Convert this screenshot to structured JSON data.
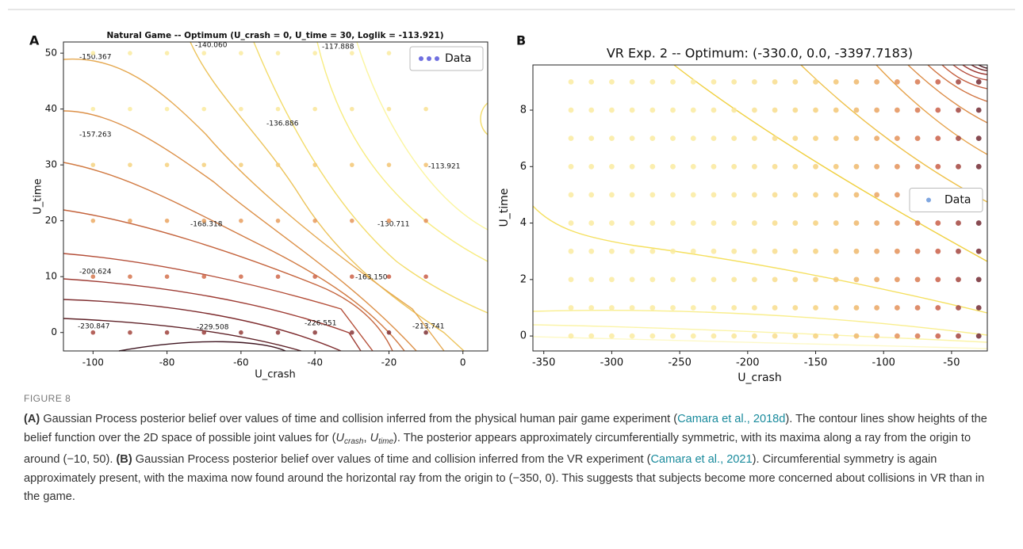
{
  "figure": {
    "label": "FIGURE 8",
    "caption": [
      {
        "text": "(A)",
        "style": "bold"
      },
      {
        "text": " Gaussian Process posterior belief over values of time and collision inferred from the physical human pair game experiment (",
        "style": "plain"
      },
      {
        "text": "Camara et al., 2018d",
        "style": "link"
      },
      {
        "text": "). The contour lines show heights of the belief function over the 2D space of possible joint values for (",
        "style": "plain"
      },
      {
        "text": "U",
        "style": "italic"
      },
      {
        "text": "crash",
        "style": "sub"
      },
      {
        "text": ", ",
        "style": "plain"
      },
      {
        "text": "U",
        "style": "italic"
      },
      {
        "text": "time",
        "style": "sub"
      },
      {
        "text": "). The posterior appears approximately circumferentially symmetric, with its maxima along a ray from the origin to around (−10, 50). ",
        "style": "plain"
      },
      {
        "text": "(B)",
        "style": "bold"
      },
      {
        "text": " Gaussian Process posterior belief over values of time and collision inferred from the VR experiment (",
        "style": "plain"
      },
      {
        "text": "Camara et al., 2021",
        "style": "link"
      },
      {
        "text": "). Circumferential symmetry is again approximately present, with the maxima now found around the horizontal ray from the origin to (−350, 0). This suggests that subjects become more concerned about collisions in VR than in the game.",
        "style": "plain"
      }
    ]
  },
  "chart_data": [
    {
      "type": "contour",
      "panel": "A",
      "title": "Natural Game -- Optimum (U_crash = 0, U_time = 30, Loglik = -113.921)",
      "xlabel": "U_crash",
      "ylabel": "U_time",
      "xlim": [
        -108,
        6.7
      ],
      "ylim": [
        -3.3,
        52
      ],
      "xticks": [
        -100,
        -80,
        -60,
        -40,
        -20,
        0
      ],
      "yticks": [
        0,
        10,
        20,
        30,
        40,
        50
      ],
      "grid_x": [
        -100,
        -90,
        -80,
        -70,
        -60,
        -50,
        -40,
        -30,
        -20,
        -10
      ],
      "grid_y": [
        0,
        10,
        20,
        30,
        40,
        50
      ],
      "contour_labels": [
        "-150.367",
        "-140.060",
        "-117.888",
        "-157.263",
        "-136.886",
        "-113.921",
        "-168.318",
        "-130.711",
        "-200.624",
        "-163.150",
        "-230.847",
        "-229.508",
        "-226.551",
        "-213.741"
      ],
      "legend": {
        "label": "Data",
        "color": "#6f6fe0",
        "loc": "upper right"
      }
    },
    {
      "type": "contour",
      "panel": "B",
      "title": "VR Exp. 2 -- Optimum: (-330.0, 0.0, -3397.7183)",
      "xlabel": "U_crash",
      "ylabel": "U_time",
      "xlim": [
        -358,
        -23.7
      ],
      "ylim": [
        -0.53,
        9.6
      ],
      "xticks": [
        -350,
        -300,
        -250,
        -200,
        -150,
        -100,
        -50
      ],
      "yticks": [
        0,
        2,
        4,
        6,
        8
      ],
      "grid_x": [
        -330,
        -315,
        -300,
        -285,
        -270,
        -255,
        -240,
        -225,
        -210,
        -195,
        -180,
        -165,
        -150,
        -135,
        -120,
        -105,
        -90,
        -75,
        -60,
        -45,
        -30
      ],
      "grid_y": [
        0,
        1,
        2,
        3,
        4,
        5,
        6,
        7,
        8,
        9
      ],
      "legend": {
        "label": "Data",
        "color": "#7fa6e0",
        "loc": "center right"
      }
    }
  ]
}
